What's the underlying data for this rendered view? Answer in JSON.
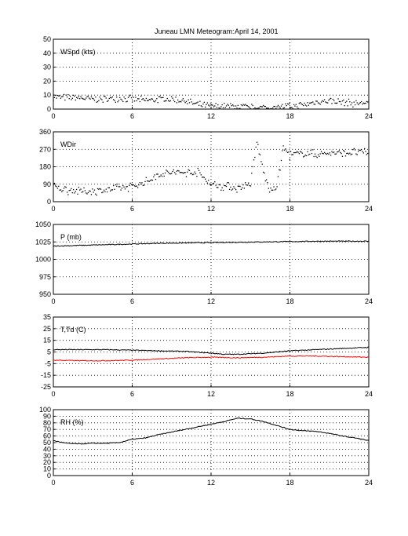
{
  "figure": {
    "title_station": "Juneau LMN Meteogram:",
    "title_date": "April 14, 2001"
  },
  "chart_data": [
    {
      "type": "scatter",
      "panel_label": "WSpd (kts)",
      "xlim": [
        0,
        24
      ],
      "ylim": [
        0,
        50
      ],
      "xticks": [
        0,
        6,
        12,
        18,
        24
      ],
      "yticks": [
        0,
        10,
        20,
        30,
        40,
        50
      ],
      "grid": true,
      "series": [
        {
          "color": "#000000",
          "marker": "dot",
          "x": [
            0,
            1,
            2,
            3,
            4,
            5,
            6,
            7,
            8,
            9,
            10,
            11,
            12,
            13,
            14,
            15,
            16,
            17,
            18,
            19,
            20,
            21,
            22,
            23,
            24
          ],
          "y": [
            9,
            8,
            8,
            7,
            7,
            8,
            7,
            6,
            7,
            7,
            6,
            3,
            2,
            2,
            2,
            1,
            1,
            1,
            2,
            3,
            5,
            6,
            5,
            4,
            5
          ]
        }
      ]
    },
    {
      "type": "scatter",
      "panel_label": "WDir",
      "xlim": [
        0,
        24
      ],
      "ylim": [
        0,
        360
      ],
      "xticks": [
        0,
        6,
        12,
        18,
        24
      ],
      "yticks": [
        0,
        90,
        180,
        270,
        360
      ],
      "grid": true,
      "series": [
        {
          "color": "#000000",
          "marker": "dot",
          "x": [
            0,
            1,
            2,
            3,
            4,
            5,
            6,
            7,
            8,
            9,
            10,
            11,
            12,
            13,
            14,
            15,
            15.5,
            16,
            16.5,
            17,
            17.5,
            18,
            19,
            20,
            21,
            22,
            23,
            24
          ],
          "y": [
            80,
            60,
            55,
            55,
            60,
            70,
            80,
            100,
            140,
            150,
            150,
            150,
            90,
            80,
            70,
            90,
            310,
            150,
            50,
            80,
            280,
            240,
            250,
            245,
            250,
            250,
            255,
            255
          ]
        }
      ]
    },
    {
      "type": "line",
      "panel_label": "P (mb)",
      "xlim": [
        0,
        24
      ],
      "ylim": [
        950,
        1050
      ],
      "xticks": [
        0,
        6,
        12,
        18,
        24
      ],
      "yticks": [
        950,
        975,
        1000,
        1025,
        1050
      ],
      "grid": true,
      "series": [
        {
          "color": "#000000",
          "x": [
            0,
            2,
            4,
            6,
            8,
            10,
            12,
            14,
            16,
            18,
            20,
            22,
            24
          ],
          "y": [
            1019,
            1020,
            1021,
            1022,
            1023,
            1023.5,
            1024,
            1024.5,
            1025,
            1025.5,
            1026,
            1026,
            1026
          ]
        }
      ]
    },
    {
      "type": "line",
      "panel_label": "T,Td (C)",
      "xlim": [
        0,
        24
      ],
      "ylim": [
        -25,
        35
      ],
      "xticks": [
        0,
        6,
        12,
        18,
        24
      ],
      "yticks": [
        -25,
        -15,
        -5,
        5,
        15,
        25,
        35
      ],
      "grid": true,
      "series": [
        {
          "color": "#000000",
          "x": [
            0,
            2,
            4,
            6,
            8,
            10,
            12,
            13,
            14,
            15,
            16,
            18,
            20,
            22,
            24
          ],
          "y": [
            7,
            7,
            7,
            6.5,
            6,
            5.5,
            4,
            3,
            3,
            3.5,
            4,
            6,
            7,
            8,
            9
          ]
        },
        {
          "color": "#ff0000",
          "x": [
            0,
            2,
            4,
            6,
            8,
            10,
            12,
            14,
            16,
            18,
            20,
            22,
            24
          ],
          "y": [
            -2,
            -2.5,
            -2.5,
            -2,
            -1,
            0,
            0.5,
            0,
            0.5,
            1.5,
            1.5,
            1,
            0.5
          ]
        }
      ]
    },
    {
      "type": "line",
      "panel_label": "RH (%)",
      "xlim": [
        0,
        24
      ],
      "ylim": [
        0,
        100
      ],
      "xticks": [
        0,
        6,
        12,
        18,
        24
      ],
      "yticks": [
        0,
        10,
        20,
        30,
        40,
        50,
        60,
        70,
        80,
        90,
        100
      ],
      "grid": true,
      "series": [
        {
          "color": "#000000",
          "x": [
            0,
            1,
            2,
            3,
            4,
            5,
            6,
            7,
            8,
            9,
            10,
            11,
            12,
            13,
            14,
            15,
            16,
            17,
            18,
            19,
            20,
            21,
            22,
            23,
            24
          ],
          "y": [
            53,
            49,
            48,
            49,
            49,
            50,
            55,
            57,
            62,
            66,
            70,
            74,
            78,
            82,
            87,
            86,
            82,
            76,
            70,
            68,
            67,
            64,
            60,
            57,
            53
          ]
        }
      ]
    }
  ]
}
